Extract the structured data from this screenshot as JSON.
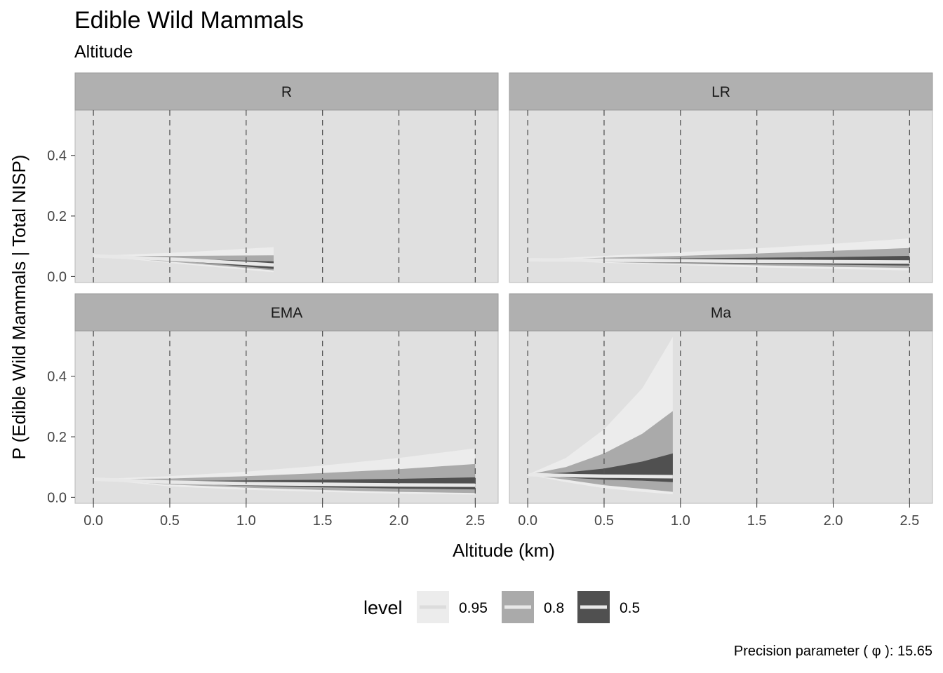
{
  "title": "Edible Wild Mammals",
  "subtitle": "Altitude",
  "caption": "Precision parameter ( φ ):  15.65",
  "colors": {
    "panel_bg": "#e0e0e0",
    "strip_bg": "#b0b0b0",
    "band_95": "#ececec",
    "band_80": "#aaaaaa",
    "band_50": "#505050",
    "median": "#e8e8e8",
    "vline": "#555555"
  },
  "chart_data": {
    "type": "area",
    "xlabel": "Altitude (km)",
    "ylabel": "P (Edible Wild Mammals | Total NISP)",
    "xlim": [
      -0.12,
      2.65
    ],
    "ylim": [
      -0.02,
      0.55
    ],
    "x_ticks": [
      "0.0",
      "0.5",
      "1.0",
      "1.5",
      "2.0",
      "2.5"
    ],
    "y_ticks": [
      "0.0",
      "0.2",
      "0.4"
    ],
    "vlines": [
      0,
      0.5,
      1.0,
      1.5,
      2.0,
      2.5
    ],
    "grid": false,
    "legend": {
      "title": "level",
      "position": "bottom",
      "entries": [
        "0.95",
        "0.8",
        "0.5"
      ]
    },
    "panels": [
      {
        "label": "R",
        "x": [
          0,
          0.6,
          1.18
        ],
        "lower_95": [
          0.068,
          0.04,
          0.014
        ],
        "lower_80": [
          0.068,
          0.045,
          0.02
        ],
        "lower_50": [
          0.068,
          0.05,
          0.025
        ],
        "upper_50": [
          0.068,
          0.058,
          0.05
        ],
        "upper_80": [
          0.068,
          0.068,
          0.07
        ],
        "upper_95": [
          0.068,
          0.08,
          0.097
        ],
        "median": [
          0.068,
          0.055,
          0.038
        ]
      },
      {
        "label": "LR",
        "x": [
          0,
          0.5,
          1.0,
          1.5,
          2.0,
          2.5
        ],
        "lower_95": [
          0.055,
          0.045,
          0.038,
          0.03,
          0.025,
          0.02
        ],
        "lower_80": [
          0.055,
          0.048,
          0.042,
          0.037,
          0.032,
          0.028
        ],
        "lower_50": [
          0.055,
          0.05,
          0.045,
          0.042,
          0.039,
          0.036
        ],
        "upper_50": [
          0.055,
          0.058,
          0.06,
          0.062,
          0.064,
          0.068
        ],
        "upper_80": [
          0.055,
          0.062,
          0.068,
          0.076,
          0.085,
          0.094
        ],
        "upper_95": [
          0.055,
          0.068,
          0.08,
          0.093,
          0.108,
          0.126
        ],
        "median": [
          0.055,
          0.054,
          0.052,
          0.05,
          0.049,
          0.048
        ]
      },
      {
        "label": "EMA",
        "x": [
          0,
          0.5,
          1.0,
          1.5,
          2.0,
          2.5
        ],
        "lower_95": [
          0.06,
          0.036,
          0.025,
          0.018,
          0.012,
          0.009
        ],
        "lower_80": [
          0.06,
          0.042,
          0.032,
          0.024,
          0.018,
          0.014
        ],
        "lower_50": [
          0.06,
          0.046,
          0.038,
          0.033,
          0.029,
          0.026
        ],
        "upper_50": [
          0.06,
          0.054,
          0.056,
          0.058,
          0.061,
          0.066
        ],
        "upper_80": [
          0.06,
          0.062,
          0.07,
          0.08,
          0.093,
          0.11
        ],
        "upper_95": [
          0.06,
          0.07,
          0.085,
          0.105,
          0.13,
          0.162
        ],
        "median": [
          0.06,
          0.05,
          0.045,
          0.043,
          0.041,
          0.04
        ]
      },
      {
        "label": "Ma",
        "x": [
          0,
          0.25,
          0.5,
          0.75,
          0.95
        ],
        "lower_95": [
          0.075,
          0.05,
          0.03,
          0.018,
          0.01
        ],
        "lower_80": [
          0.075,
          0.058,
          0.04,
          0.028,
          0.018
        ],
        "lower_50": [
          0.075,
          0.065,
          0.058,
          0.055,
          0.05
        ],
        "upper_50": [
          0.075,
          0.082,
          0.095,
          0.118,
          0.145
        ],
        "upper_80": [
          0.075,
          0.1,
          0.145,
          0.21,
          0.285
        ],
        "upper_95": [
          0.075,
          0.13,
          0.225,
          0.36,
          0.53
        ],
        "median": [
          0.075,
          0.072,
          0.07,
          0.069,
          0.068
        ]
      }
    ]
  }
}
